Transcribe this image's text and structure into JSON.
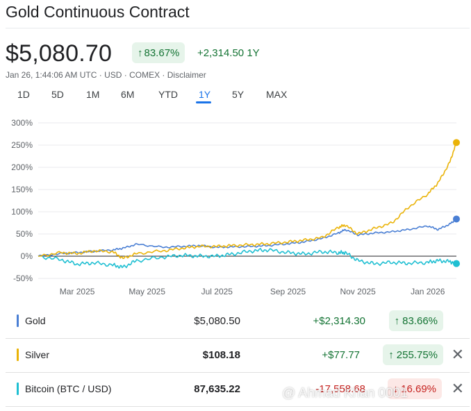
{
  "header": {
    "title": "Gold Continuous Contract",
    "price": "$5,080.70",
    "pct_change": "83.67%",
    "abs_change": "+2,314.50 1Y",
    "meta": "Jan 26, 1:44:06 AM UTC · USD · COMEX · Disclaimer"
  },
  "ranges": [
    "1D",
    "5D",
    "1M",
    "6M",
    "YTD",
    "1Y",
    "5Y",
    "MAX"
  ],
  "active_range": "1Y",
  "icons": {
    "up": "↑",
    "down": "↓",
    "close": "✕"
  },
  "colors": {
    "gold": "#4a7fd4",
    "silver": "#eab308",
    "bitcoin": "#1fbfd2",
    "positive": "#137333",
    "positive_bg": "#e6f4ea",
    "negative": "#c5221f",
    "negative_bg": "#fce8e6",
    "accent": "#1a73e8"
  },
  "legend": [
    {
      "name": "Gold",
      "value": "$5,080.50",
      "change": "+$2,314.30",
      "pct": "83.66%",
      "direction": "up",
      "removable": false
    },
    {
      "name": "Silver",
      "value": "$108.18",
      "change": "+$77.77",
      "pct": "255.75%",
      "direction": "up",
      "removable": true
    },
    {
      "name": "Bitcoin (BTC / USD)",
      "value": "87,635.22",
      "change": "-17,558.68",
      "pct": "16.69%",
      "direction": "down",
      "removable": true
    }
  ],
  "watermark": "@ Ahmad Khan 0001",
  "chart_data": {
    "type": "line",
    "y_ticks": [
      "300%",
      "250%",
      "200%",
      "150%",
      "100%",
      "50%",
      "0%",
      "-50%"
    ],
    "x_ticks": [
      "Mar 2025",
      "May 2025",
      "Jul 2025",
      "Sep 2025",
      "Nov 2025",
      "Jan 2026"
    ],
    "ylim": [
      -50,
      300
    ],
    "grid": true,
    "x": [
      "2025-01-26",
      "2025-02-15",
      "2025-03-01",
      "2025-03-15",
      "2025-04-01",
      "2025-04-10",
      "2025-04-22",
      "2025-05-15",
      "2025-06-01",
      "2025-06-15",
      "2025-07-01",
      "2025-07-15",
      "2025-08-01",
      "2025-08-15",
      "2025-09-01",
      "2025-09-15",
      "2025-10-01",
      "2025-10-15",
      "2025-10-21",
      "2025-11-01",
      "2025-11-15",
      "2025-12-01",
      "2025-12-15",
      "2026-01-01",
      "2026-01-10",
      "2026-01-20",
      "2026-01-26"
    ],
    "series": [
      {
        "name": "Gold",
        "values": [
          0,
          6,
          8,
          11,
          14,
          18,
          27,
          20,
          22,
          24,
          20,
          21,
          22,
          24,
          28,
          32,
          40,
          52,
          60,
          48,
          52,
          55,
          60,
          68,
          60,
          72,
          83.66
        ]
      },
      {
        "name": "Silver",
        "values": [
          0,
          8,
          6,
          12,
          10,
          -5,
          6,
          12,
          18,
          22,
          22,
          24,
          26,
          28,
          32,
          36,
          42,
          65,
          70,
          50,
          62,
          75,
          110,
          140,
          165,
          210,
          255.75
        ]
      },
      {
        "name": "Bitcoin (BTC / USD)",
        "values": [
          0,
          -8,
          -18,
          -15,
          -20,
          -25,
          -10,
          -2,
          2,
          0,
          0,
          5,
          12,
          14,
          8,
          5,
          10,
          8,
          8,
          -10,
          -17,
          -14,
          -16,
          -14,
          -10,
          -12,
          -16.69
        ]
      }
    ]
  }
}
